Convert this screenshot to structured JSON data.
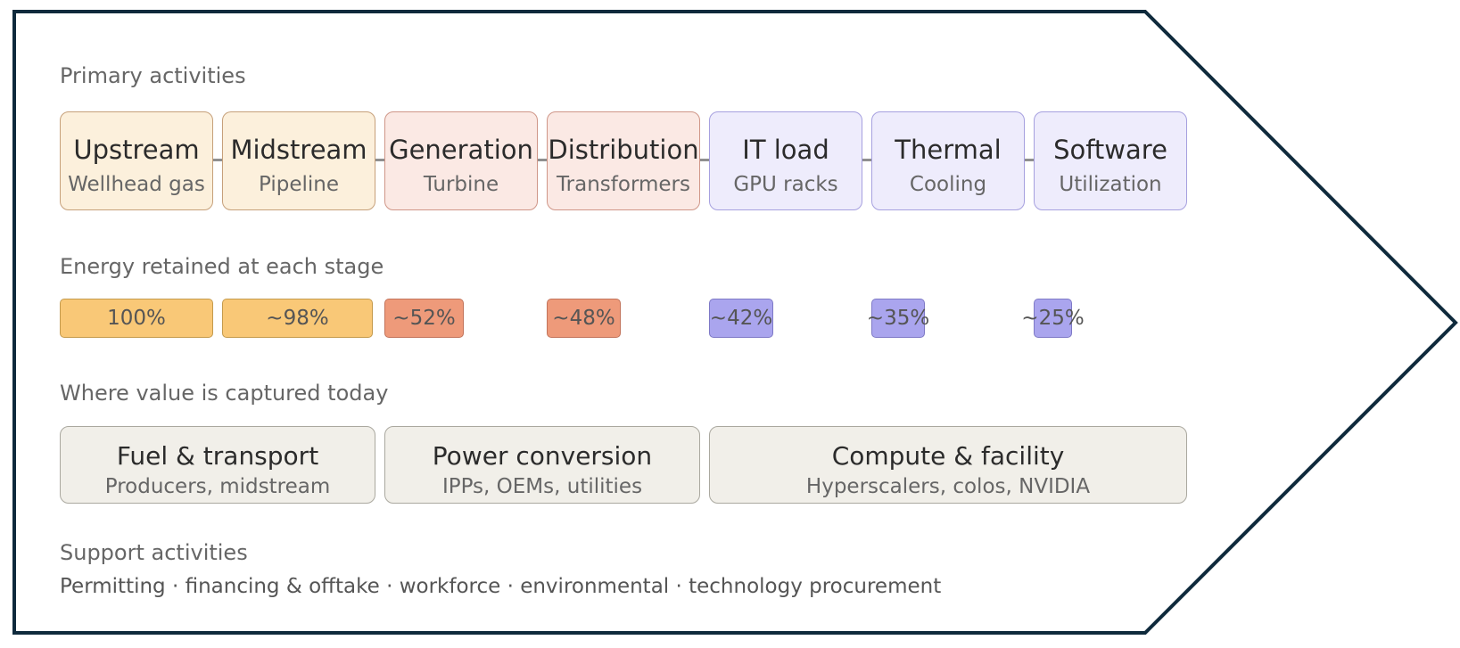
{
  "colors": {
    "frame_stroke": "#0f2a3c",
    "fuel": "#f9c877",
    "power": "#ee9a7a",
    "compute": "#aaa5ee",
    "capture": "#f1efe9"
  },
  "primary_label": "Primary activities",
  "stages": [
    {
      "name": "Upstream",
      "sub": "Wellhead gas",
      "group": "amber"
    },
    {
      "name": "Midstream",
      "sub": "Pipeline",
      "group": "amber"
    },
    {
      "name": "Generation",
      "sub": "Turbine",
      "group": "coral"
    },
    {
      "name": "Distribution",
      "sub": "Transformers",
      "group": "coral"
    },
    {
      "name": "IT load",
      "sub": "GPU racks",
      "group": "violet"
    },
    {
      "name": "Thermal",
      "sub": "Cooling",
      "group": "violet"
    },
    {
      "name": "Software",
      "sub": "Utilization",
      "group": "violet"
    }
  ],
  "energy_label": "Energy retained at each stage",
  "energy": [
    {
      "label": "100%",
      "value": 100
    },
    {
      "label": "~98%",
      "value": 98
    },
    {
      "label": "~52%",
      "value": 52
    },
    {
      "label": "~48%",
      "value": 48
    },
    {
      "label": "~42%",
      "value": 42
    },
    {
      "label": "~35%",
      "value": 35
    },
    {
      "label": "~25%",
      "value": 25
    }
  ],
  "capture_label": "Where value is captured today",
  "capture": [
    {
      "title": "Fuel & transport",
      "sub": "Producers, midstream"
    },
    {
      "title": "Power conversion",
      "sub": "IPPs, OEMs, utilities"
    },
    {
      "title": "Compute & facility",
      "sub": "Hyperscalers, colos, NVIDIA"
    }
  ],
  "support_label": "Support activities",
  "support_text": "Permitting · financing & offtake · workforce · environmental · technology procurement"
}
